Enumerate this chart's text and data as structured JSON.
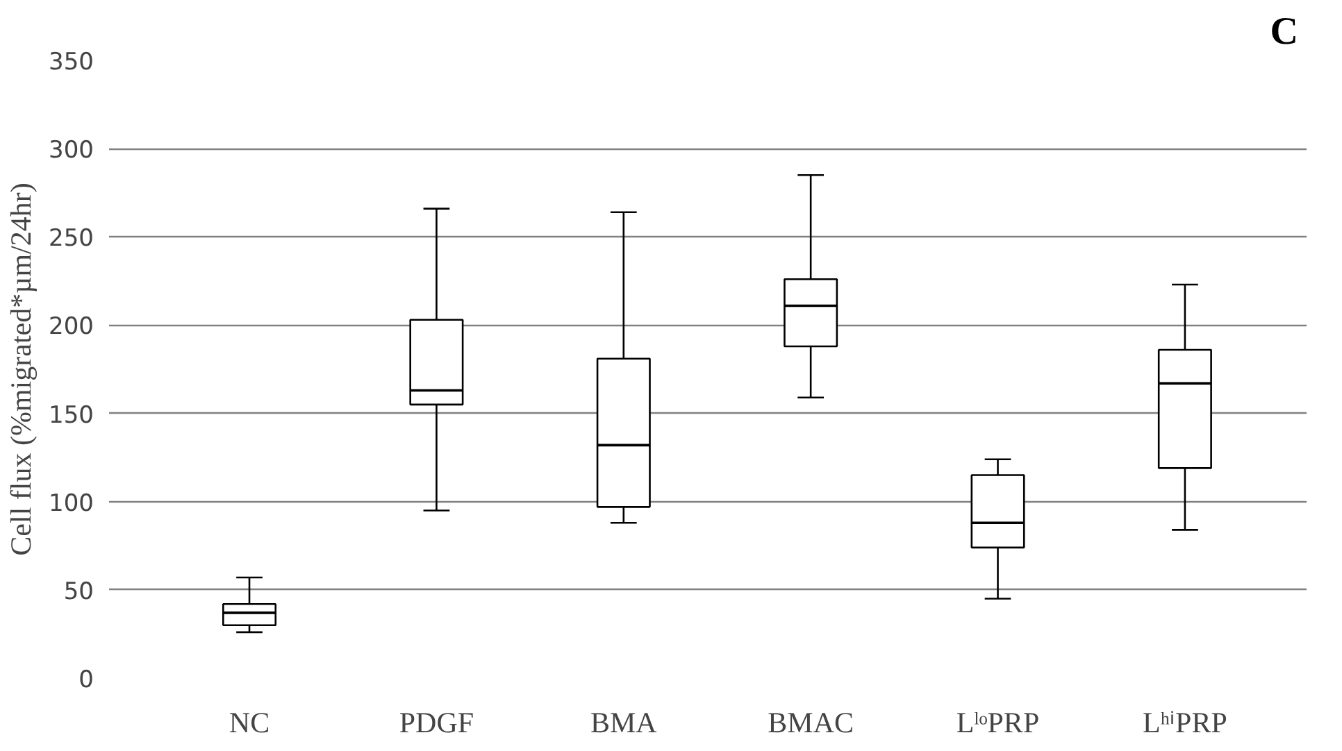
{
  "chart_data": {
    "type": "box",
    "ylabel": "Cell flux (%migrated*µm/24hr)",
    "categories": [
      "NC",
      "PDGF",
      "BMA",
      "BMAC",
      "LˡᵒPRP",
      "LʰⁱPRP"
    ],
    "boxes": [
      {
        "low": 26,
        "q1": 30,
        "median": 37,
        "q3": 42,
        "high": 57
      },
      {
        "low": 95,
        "q1": 155,
        "median": 163,
        "q3": 203,
        "high": 266
      },
      {
        "low": 88,
        "q1": 97,
        "median": 132,
        "q3": 181,
        "high": 264
      },
      {
        "low": 159,
        "q1": 188,
        "median": 211,
        "q3": 226,
        "high": 285
      },
      {
        "low": 45,
        "q1": 74,
        "median": 88,
        "q3": 115,
        "high": 124
      },
      {
        "low": 84,
        "q1": 119,
        "median": 167,
        "q3": 186,
        "high": 223
      }
    ],
    "ylim": [
      0,
      350
    ],
    "yticks": [
      0,
      50,
      100,
      150,
      200,
      250,
      300,
      350
    ],
    "grid": "y",
    "annotations": [
      "C"
    ]
  }
}
